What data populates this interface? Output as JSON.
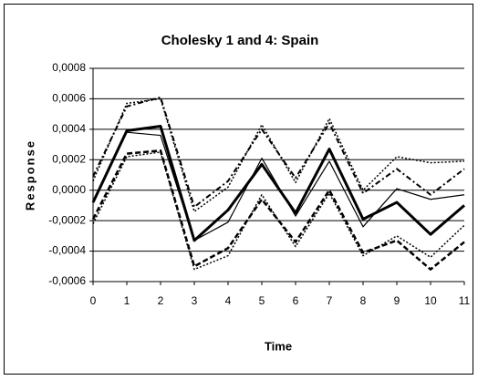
{
  "chart_data": {
    "type": "line",
    "title": "Cholesky 1 and 4: Spain",
    "x_label": "Time",
    "y_label": "Response",
    "x": [
      0,
      1,
      2,
      3,
      4,
      5,
      6,
      7,
      8,
      9,
      10,
      11
    ],
    "xlim": [
      0,
      11
    ],
    "xticks": [
      0,
      1,
      2,
      3,
      4,
      5,
      6,
      7,
      8,
      9,
      10,
      11
    ],
    "ylim": [
      -0.0006,
      0.0008
    ],
    "yticks": [
      {
        "value": -0.0006,
        "label": "-0,0006"
      },
      {
        "value": -0.0004,
        "label": "-0,0004"
      },
      {
        "value": -0.0002,
        "label": "-0,0002"
      },
      {
        "value": 0,
        "label": "0,0000"
      },
      {
        "value": 0.0002,
        "label": "0,0002"
      },
      {
        "value": 0.0004,
        "label": "0,0004"
      },
      {
        "value": 0.0006,
        "label": "0,0006"
      },
      {
        "value": 0.0008,
        "label": "0,0008"
      }
    ],
    "grid": true,
    "series": [
      {
        "color": "#000000",
        "width": 3,
        "dash": "none",
        "values": [
          -8e-05,
          0.00039,
          0.00042,
          -0.00033,
          -0.00013,
          0.00017,
          -0.00015,
          0.00027,
          -0.00019,
          -8e-05,
          -0.00029,
          -0.0001
        ]
      },
      {
        "color": "#000000",
        "width": 1.2,
        "dash": "none",
        "values": [
          -7e-05,
          0.00038,
          0.00036,
          -0.00033,
          -0.00021,
          0.00021,
          -0.00017,
          0.00019,
          -0.00024,
          1e-05,
          -6e-05,
          -3e-05
        ]
      },
      {
        "color": "#000000",
        "width": 1.5,
        "dash": "2 2",
        "values": [
          6e-05,
          0.00057,
          0.0006,
          -0.00014,
          2e-05,
          0.00043,
          5e-05,
          0.00047,
          0,
          0.00022,
          0.00018,
          0.00019
        ]
      },
      {
        "color": "#000000",
        "width": 2,
        "dash": "6 3 2 3",
        "values": [
          9e-05,
          0.00055,
          0.00061,
          -0.00011,
          6e-05,
          0.0004,
          8e-05,
          0.00044,
          -2e-05,
          0.00014,
          -3e-05,
          0.00014
        ]
      },
      {
        "color": "#000000",
        "width": 1.5,
        "dash": "2 2",
        "values": [
          -0.00022,
          0.00022,
          0.00025,
          -0.00052,
          -0.00043,
          -3e-05,
          -0.00037,
          -2e-05,
          -0.00043,
          -0.0003,
          -0.00044,
          -0.00023
        ]
      },
      {
        "color": "#000000",
        "width": 2.5,
        "dash": "6 3",
        "values": [
          -0.00019,
          0.00024,
          0.00026,
          -0.0005,
          -0.00038,
          -6e-05,
          -0.00034,
          0,
          -0.00041,
          -0.00033,
          -0.00052,
          -0.00034
        ]
      }
    ]
  }
}
